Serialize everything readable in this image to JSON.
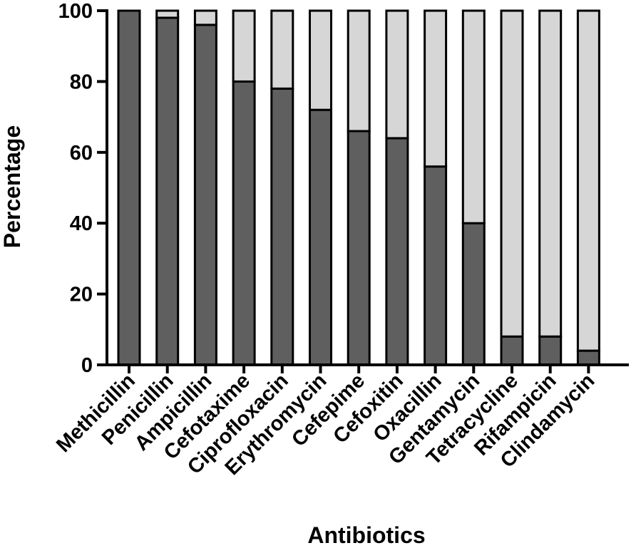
{
  "chart_data": {
    "type": "bar",
    "stacked": true,
    "title": "",
    "xlabel": "Antibiotics",
    "ylabel": "Percentage",
    "ylim": [
      0,
      100
    ],
    "yticks": [
      "0",
      "20",
      "40",
      "60",
      "80",
      "100"
    ],
    "categories": [
      "Methicillin",
      "Penicillin",
      "Ampicillin",
      "Cefotaxime",
      "Ciprofloxacin",
      "Erythromycin",
      "Cefepime",
      "Cefoxitin",
      "Oxacillin",
      "Gentamycin",
      "Tetracycline",
      "Rifampicin",
      "Clindamycin"
    ],
    "series": [
      {
        "values": [
          100,
          98,
          96,
          80,
          78,
          72,
          66,
          64,
          56,
          40,
          8,
          8,
          4
        ],
        "color": "#5f5f5f"
      },
      {
        "values": [
          0,
          2,
          4,
          20,
          22,
          28,
          34,
          36,
          44,
          60,
          92,
          92,
          96
        ],
        "color": "#d6d6d6"
      }
    ],
    "grid": false,
    "legend": "none"
  }
}
